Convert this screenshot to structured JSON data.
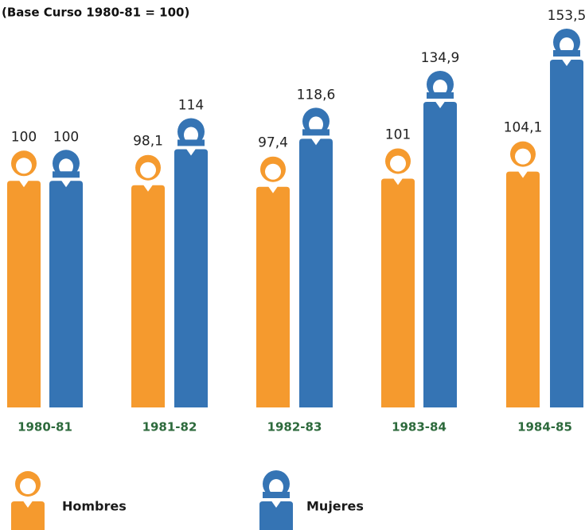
{
  "chart_data": {
    "type": "bar",
    "subtitle": "(Base Curso 1980-81 = 100)",
    "categories": [
      "1980-81",
      "1981-82",
      "1982-83",
      "1983-84",
      "1984-85"
    ],
    "series": [
      {
        "name": "Hombres",
        "color": "#f59a2e",
        "values": [
          100,
          98.1,
          97.4,
          101,
          104.1
        ],
        "value_labels": [
          "100",
          "98,1",
          "97,4",
          "101",
          "104,1"
        ]
      },
      {
        "name": "Mujeres",
        "color": "#3574b4",
        "values": [
          100,
          114,
          118.6,
          134.9,
          153.5
        ],
        "value_labels": [
          "100",
          "114",
          "118,6",
          "134,9",
          "153,5"
        ]
      }
    ]
  }
}
